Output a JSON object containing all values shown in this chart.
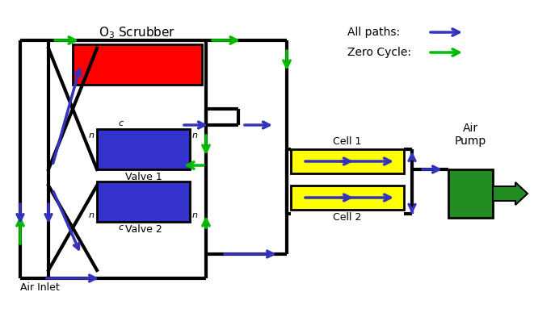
{
  "bg_color": "#ffffff",
  "green": "#00bb00",
  "blue": "#3333bb",
  "black": "#000000",
  "red": "#ff0000",
  "blue_valve": "#3333cc",
  "yellow": "#ffff00",
  "pump_green": "#228B22",
  "lw_main": 2.5,
  "labels": {
    "scrubber": "O$_3$ Scrubber",
    "valve1": "Valve 1",
    "valve2": "Valve 2",
    "cell1": "Cell 1",
    "cell2": "Cell 2",
    "air_inlet": "Air Inlet",
    "air_pump": "Air\nPump",
    "all_paths": "All paths:",
    "zero_cycle": "Zero Cycle:"
  }
}
